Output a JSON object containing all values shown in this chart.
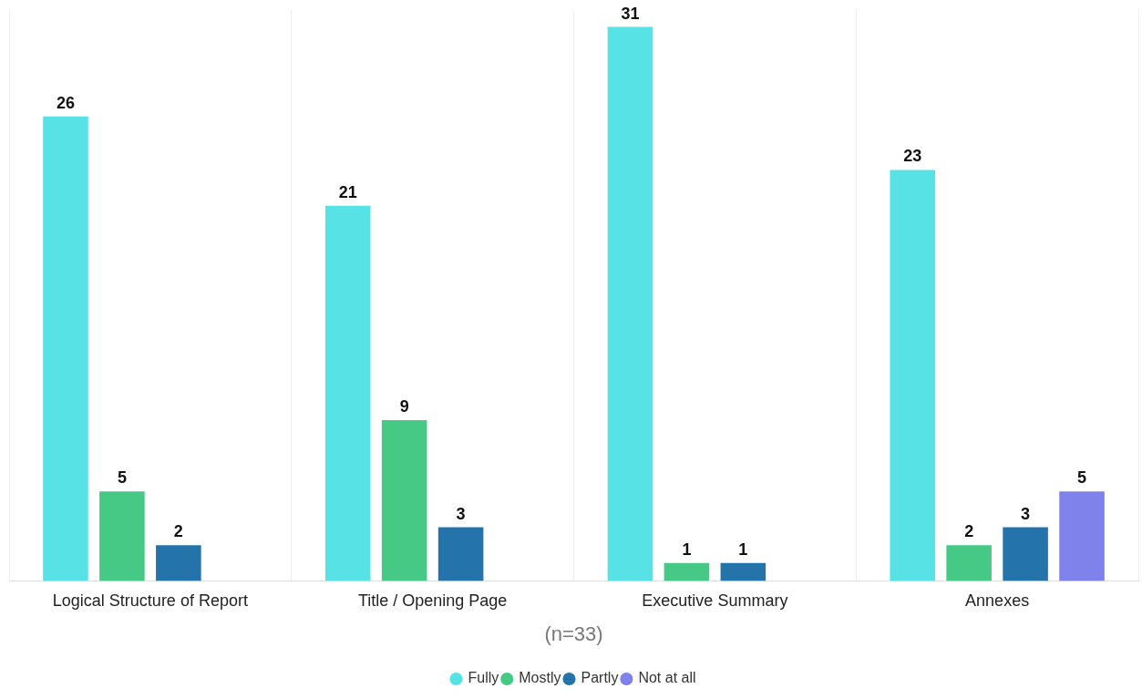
{
  "chart_data": {
    "type": "bar",
    "categories": [
      "Logical Structure of Report",
      "Title / Opening Page",
      "Executive Summary",
      "Annexes"
    ],
    "series": [
      {
        "name": "Fully",
        "color": "#57e2e5",
        "values": [
          26,
          21,
          31,
          23
        ]
      },
      {
        "name": "Mostly",
        "color": "#45c985",
        "values": [
          5,
          9,
          1,
          2
        ]
      },
      {
        "name": "Partly",
        "color": "#2474ab",
        "values": [
          2,
          3,
          1,
          3
        ]
      },
      {
        "name": "Not at all",
        "color": "#7f82ea",
        "values": [
          null,
          null,
          null,
          5
        ]
      }
    ],
    "ylim": [
      0,
      32
    ],
    "data_labels": true,
    "grid": "x",
    "legend": "bottom",
    "tick_labels": "x",
    "annotations": [
      "(n=33)"
    ]
  }
}
